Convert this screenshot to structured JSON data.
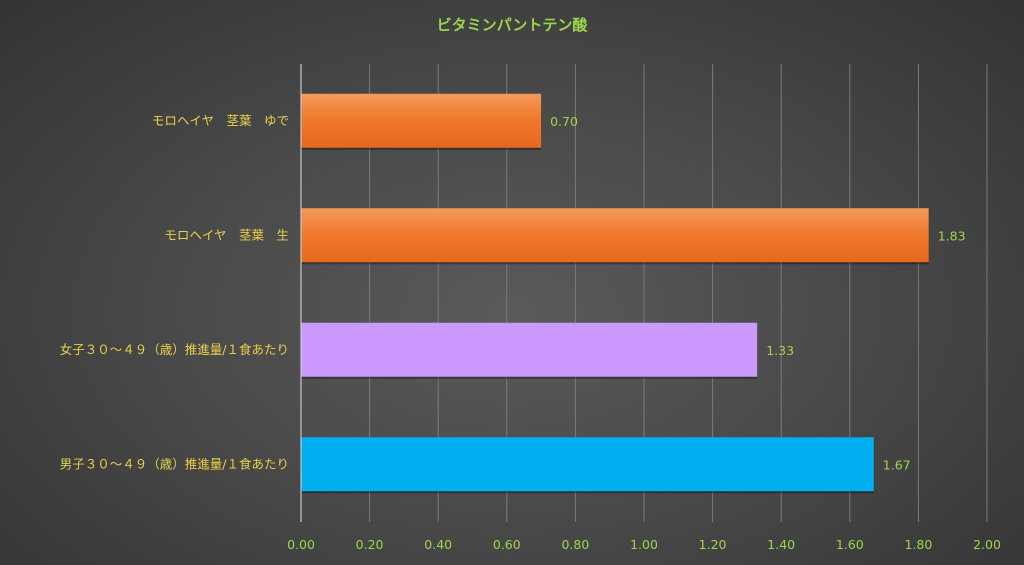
{
  "chart_data": {
    "type": "bar",
    "orientation": "horizontal",
    "title": "ビタミンパントテン酸",
    "categories": [
      "モロヘイヤ　茎葉　ゆで",
      "モロヘイヤ　茎葉　生",
      "女子３０～４９（歳）推進量/１食あたり",
      "男子３０～４９（歳）推進量/１食あたり"
    ],
    "values": [
      0.7,
      1.83,
      1.33,
      1.67
    ],
    "data_labels": [
      "0.70",
      "1.83",
      "1.33",
      "1.67"
    ],
    "bar_colors": [
      "#ef7a2e",
      "#ef7a2e",
      "#cc99ff",
      "#00b0f0"
    ],
    "xlim": [
      0,
      2.0
    ],
    "x_ticks": [
      "0.00",
      "0.20",
      "0.40",
      "0.60",
      "0.80",
      "1.00",
      "1.20",
      "1.40",
      "1.60",
      "1.80",
      "2.00"
    ],
    "xlabel": "",
    "ylabel": "",
    "grid": true,
    "legend": "none"
  }
}
